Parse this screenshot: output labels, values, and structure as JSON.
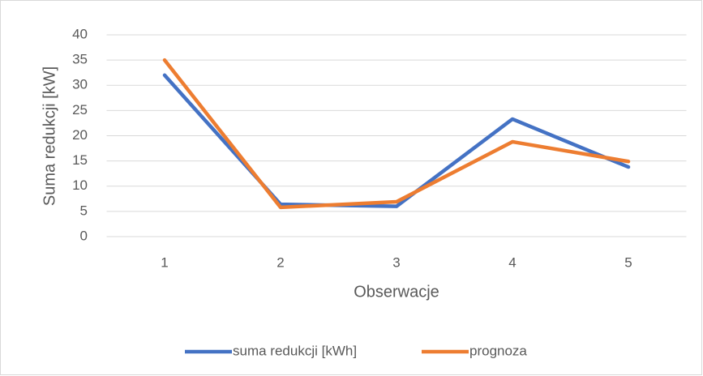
{
  "chart_data": {
    "type": "line",
    "categories": [
      "1",
      "2",
      "3",
      "4",
      "5"
    ],
    "series": [
      {
        "name": "suma redukcji [kWh]",
        "color": "#4472c4",
        "values": [
          32,
          6.4,
          6,
          23.3,
          13.8
        ]
      },
      {
        "name": "prognoza",
        "color": "#ed7d31",
        "values": [
          35,
          5.8,
          6.9,
          18.8,
          14.9
        ]
      }
    ],
    "xlabel": "Obserwacje",
    "ylabel": "Suma redukcji [kW]",
    "ylim": [
      0,
      40
    ],
    "yticks": [
      0,
      5,
      10,
      15,
      20,
      25,
      30,
      35,
      40
    ],
    "grid": true,
    "legend": "bottom"
  }
}
